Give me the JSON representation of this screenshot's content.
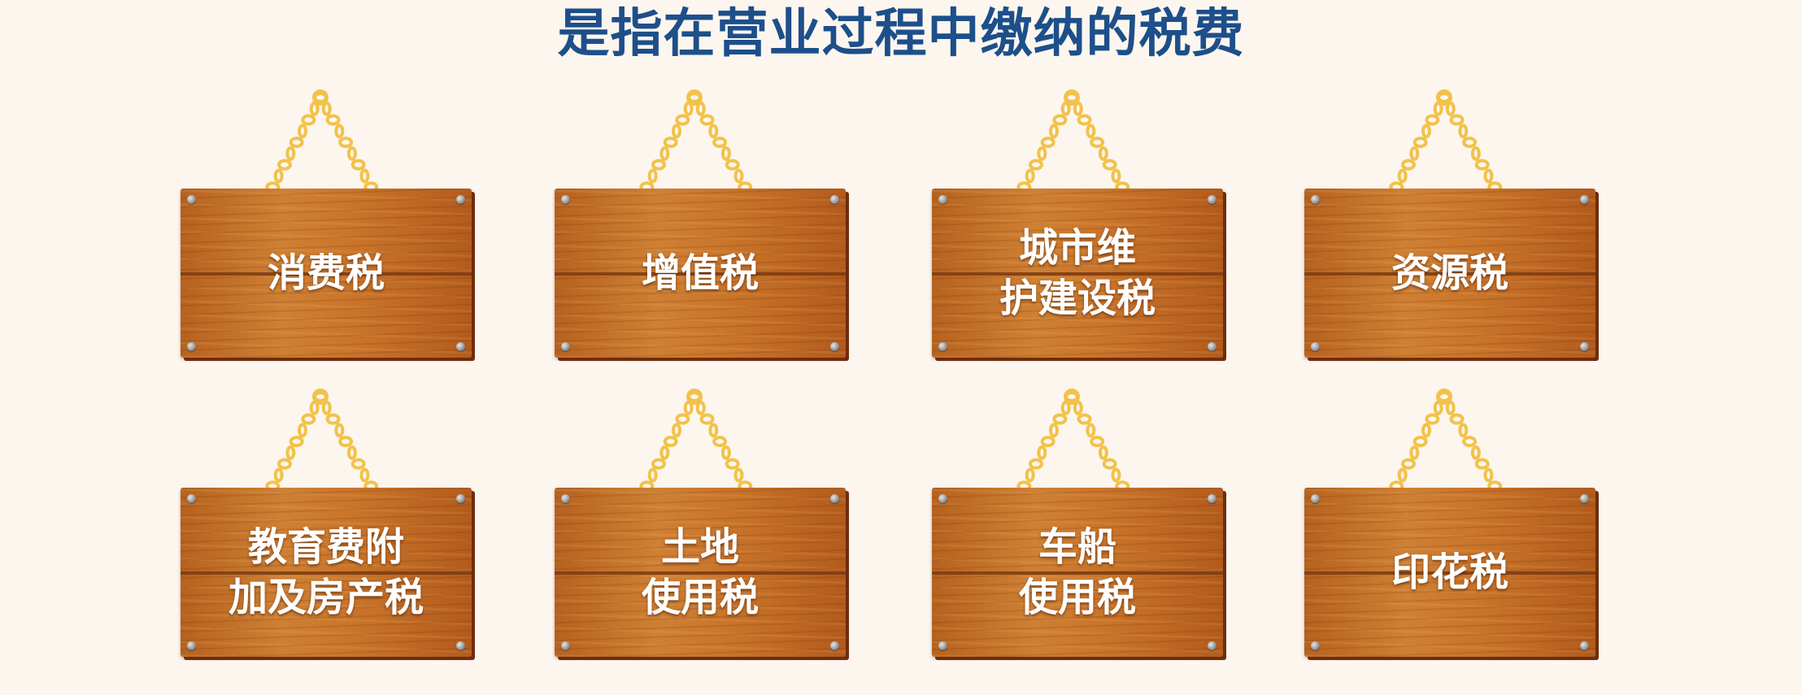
{
  "heading": "是指在营业过程中缴纳的税费",
  "colors": {
    "heading": "#1d4f8a",
    "background": "#fcf6ef",
    "wood": "#c9742a",
    "chain": "#f2c24b"
  },
  "signs": [
    {
      "lines": [
        "消费税"
      ],
      "icon": "wooden-sign-icon"
    },
    {
      "lines": [
        "增值税"
      ],
      "icon": "wooden-sign-icon"
    },
    {
      "lines": [
        "城市维",
        "护建设税"
      ],
      "icon": "wooden-sign-icon"
    },
    {
      "lines": [
        "资源税"
      ],
      "icon": "wooden-sign-icon"
    },
    {
      "lines": [
        "教育费附",
        "加及房产税"
      ],
      "icon": "wooden-sign-icon"
    },
    {
      "lines": [
        "土地",
        "使用税"
      ],
      "icon": "wooden-sign-icon"
    },
    {
      "lines": [
        "车船",
        "使用税"
      ],
      "icon": "wooden-sign-icon"
    },
    {
      "lines": [
        "印花税"
      ],
      "icon": "wooden-sign-icon"
    }
  ]
}
